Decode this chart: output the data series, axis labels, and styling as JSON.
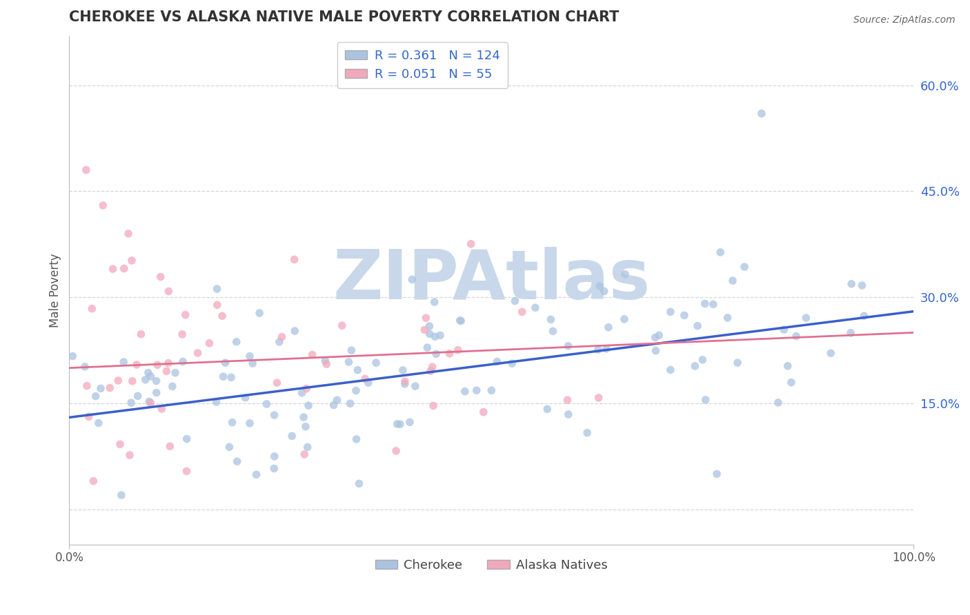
{
  "title": "CHEROKEE VS ALASKA NATIVE MALE POVERTY CORRELATION CHART",
  "source": "Source: ZipAtlas.com",
  "ylabel": "Male Poverty",
  "yticks": [
    0.0,
    0.15,
    0.3,
    0.45,
    0.6
  ],
  "ytick_labels": [
    "",
    "15.0%",
    "30.0%",
    "45.0%",
    "60.0%"
  ],
  "xlim": [
    0.0,
    1.0
  ],
  "ylim": [
    -0.05,
    0.67
  ],
  "cherokee_color": "#aac4e0",
  "alaska_color": "#f2a8bc",
  "cherokee_line_color": "#3a5fcd",
  "alaska_line_color": "#e07090",
  "cherokee_R": 0.361,
  "cherokee_N": 124,
  "alaska_R": 0.051,
  "alaska_N": 55,
  "legend_text_color": "#3366cc",
  "watermark": "ZIPAtlas",
  "watermark_color": "#c8d8ea",
  "background_color": "#ffffff",
  "grid_color": "#cccccc",
  "title_color": "#333333",
  "ytick_color": "#3366cc",
  "xtick_color": "#555555"
}
